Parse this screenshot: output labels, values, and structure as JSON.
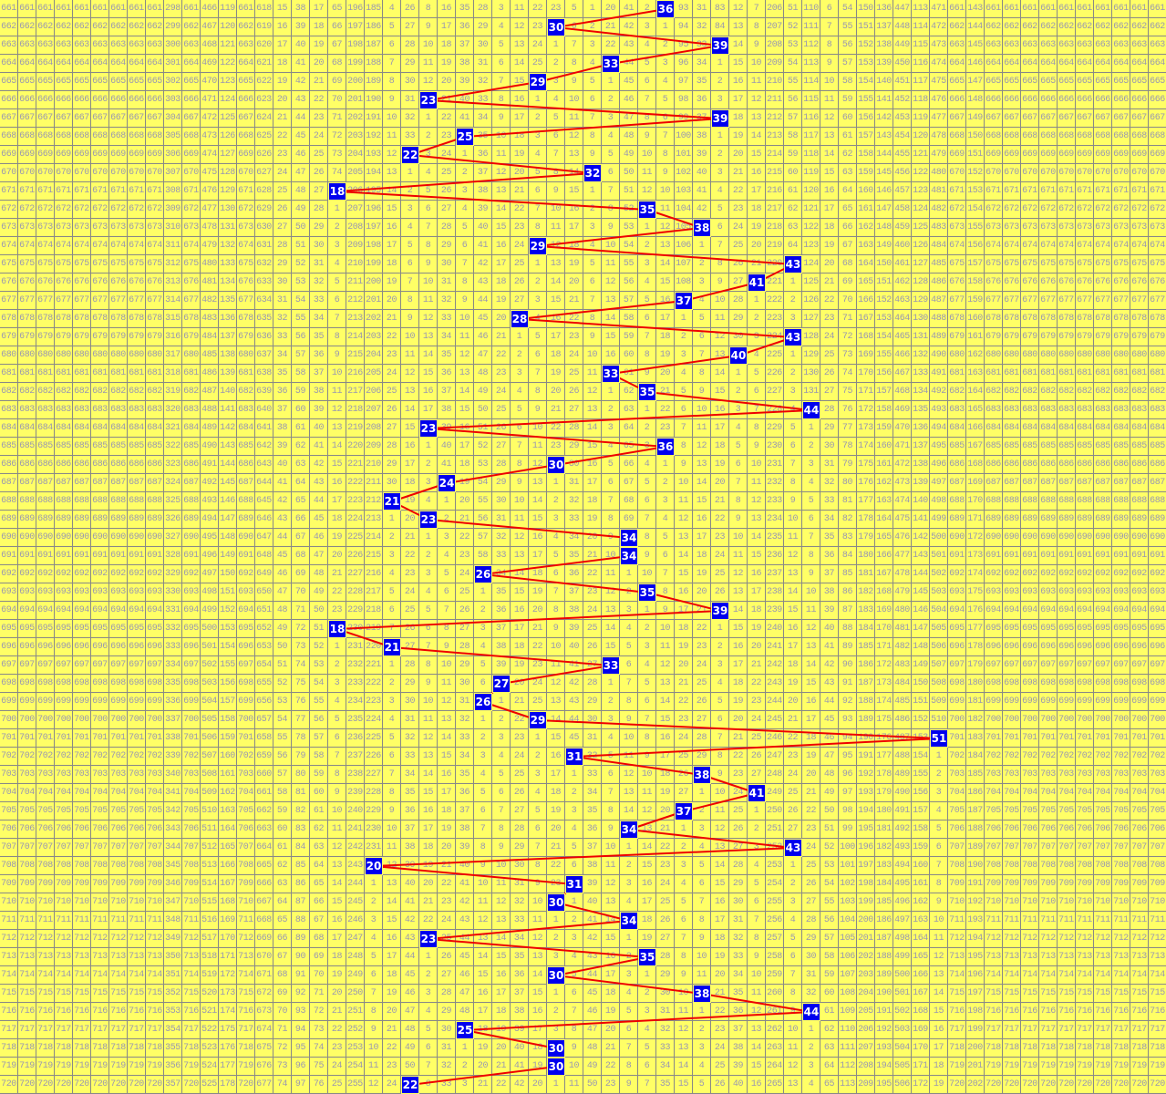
{
  "chart_data": {
    "type": "table",
    "first_row_value": 661,
    "column_numbers": {
      "from": 0,
      "to": 63
    },
    "initial_row": [
      661,
      661,
      661,
      661,
      661,
      661,
      661,
      661,
      661,
      298,
      661,
      466,
      119,
      661,
      618,
      15,
      38,
      17,
      65,
      196,
      185,
      4,
      26,
      8,
      16,
      35,
      28,
      3,
      11,
      22,
      23,
      5,
      1,
      20,
      41,
      2,
      0,
      93,
      31,
      83,
      12,
      7,
      206,
      51,
      110,
      6,
      54,
      150,
      136,
      447,
      113,
      471,
      661,
      143,
      661,
      661,
      661,
      661,
      661,
      661,
      661,
      661,
      661,
      661
    ],
    "hits": [
      36,
      30,
      39,
      33,
      29,
      23,
      39,
      25,
      22,
      32,
      18,
      35,
      38,
      29,
      43,
      41,
      37,
      28,
      43,
      40,
      33,
      35,
      44,
      23,
      36,
      30,
      24,
      21,
      23,
      34,
      34,
      26,
      35,
      39,
      18,
      21,
      33,
      27,
      26,
      29,
      51,
      31,
      38,
      41,
      37,
      34,
      43,
      20,
      31,
      30,
      34,
      23,
      35,
      30,
      38,
      44,
      25,
      30,
      30,
      22
    ]
  },
  "colors": {
    "cell_background": "#ffff66",
    "cell_text": "#9a98b0",
    "grid_line": "#888888",
    "hit_background": "#0000ee",
    "hit_text": "#ffffff",
    "trend_line": "#ee0000"
  }
}
